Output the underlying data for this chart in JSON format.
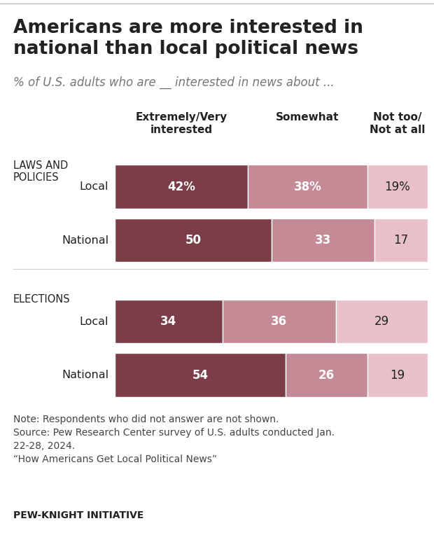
{
  "title": "Americans are more interested in\nnational than local political news",
  "subtitle": "% of U.S. adults who are __ interested in news about ...",
  "sections": [
    {
      "label": "LAWS AND\nPOLICIES",
      "rows": [
        {
          "name": "Local",
          "values": [
            42,
            38,
            19
          ],
          "pct_signs": [
            true,
            true,
            true
          ]
        },
        {
          "name": "National",
          "values": [
            50,
            33,
            17
          ],
          "pct_signs": [
            false,
            false,
            false
          ]
        }
      ]
    },
    {
      "label": "ELECTIONS",
      "rows": [
        {
          "name": "Local",
          "values": [
            34,
            36,
            29
          ],
          "pct_signs": [
            false,
            false,
            false
          ]
        },
        {
          "name": "National",
          "values": [
            54,
            26,
            19
          ],
          "pct_signs": [
            false,
            false,
            false
          ]
        }
      ]
    }
  ],
  "col_headers": [
    "Extremely/Very\ninterested",
    "Somewhat",
    "Not too/\nNot at all"
  ],
  "colors": [
    "#7b3d47",
    "#c48b97",
    "#e8c0c8"
  ],
  "note": "Note: Respondents who did not answer are not shown.\nSource: Pew Research Center survey of U.S. adults conducted Jan.\n22-28, 2024.\n“How Americans Get Local Political News”",
  "footer": "PEW-KNIGHT INITIATIVE",
  "background_color": "#ffffff",
  "text_color_dark": "#222222",
  "text_color_light": "#ffffff",
  "title_fontsize": 19,
  "subtitle_fontsize": 12,
  "bar_text_fontsize": 12,
  "note_fontsize": 10,
  "footer_fontsize": 10
}
